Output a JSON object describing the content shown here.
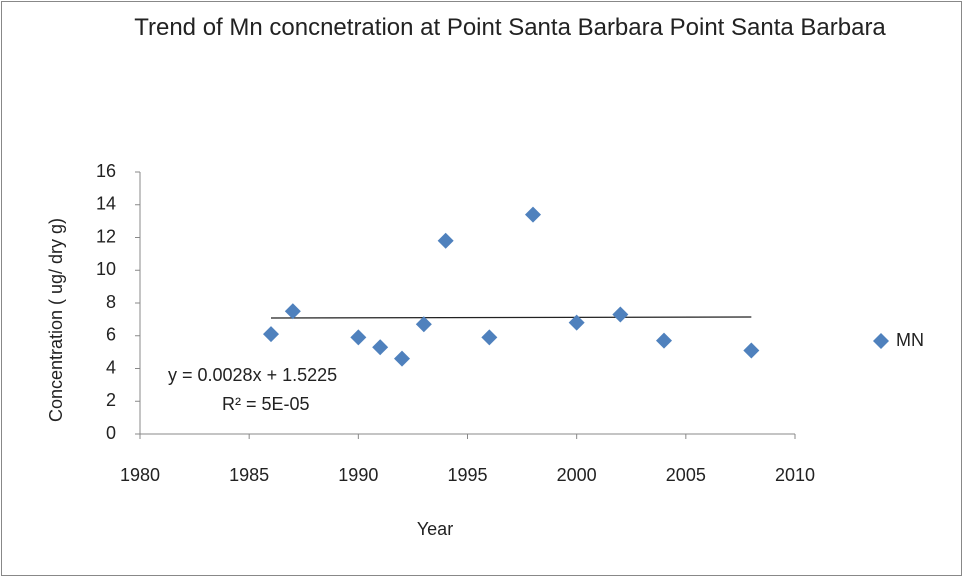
{
  "chart_data": {
    "type": "scatter",
    "title": "Trend of Mn concnetration at Point Santa Barbara Point Santa Barbara",
    "x_label": "Year",
    "y_label": "Concentration ( ug/ dry g)",
    "series": [
      {
        "name": "MN",
        "color": "#4f81bd",
        "x": [
          1986,
          1987,
          1990,
          1991,
          1992,
          1993,
          1994,
          1996,
          1998,
          2000,
          2002,
          2004,
          2008
        ],
        "values": [
          6.1,
          7.5,
          5.9,
          5.3,
          4.6,
          6.7,
          11.8,
          5.9,
          13.4,
          6.8,
          7.3,
          5.7,
          5.1
        ]
      }
    ],
    "trendline": {
      "slope": 0.0028,
      "intercept": 1.5225,
      "equation": "y = 0.0028x + 1.5225",
      "r2": "R² = 5E-05"
    },
    "xlim": [
      1980,
      2010
    ],
    "xticks": [
      1980,
      1985,
      1990,
      1995,
      2000,
      2005,
      2010
    ],
    "ylim": [
      0,
      16
    ],
    "yticks": [
      0,
      2,
      4,
      6,
      8,
      10,
      12,
      14,
      16
    ],
    "legend": "right"
  }
}
